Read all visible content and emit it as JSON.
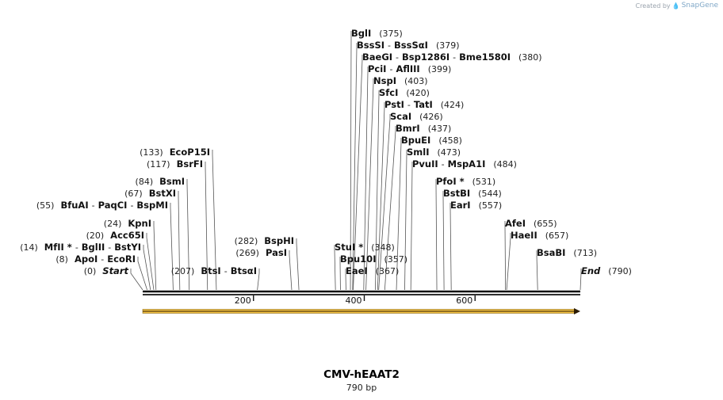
{
  "credit": {
    "prefix": "Created by",
    "brand": "SnapGene"
  },
  "title": "CMV-hEAAT2",
  "subtitle": "790 bp",
  "map": {
    "length": 790,
    "ticks": [
      200,
      400,
      600
    ],
    "feature": {
      "start": 1,
      "end": 790,
      "direction": "forward",
      "color": "#f5c242"
    },
    "sites": [
      {
        "pos": 375,
        "pos_label": "(375)",
        "names": [
          "BglI"
        ]
      },
      {
        "pos": 379,
        "pos_label": "(379)",
        "names": [
          "BssSI",
          "BssSαI"
        ]
      },
      {
        "pos": 380,
        "pos_label": "(380)",
        "names": [
          "BaeGI",
          "Bsp1286I",
          "Bme1580I"
        ]
      },
      {
        "pos": 399,
        "pos_label": "(399)",
        "names": [
          "PciI",
          "AflIII"
        ]
      },
      {
        "pos": 403,
        "pos_label": "(403)",
        "names": [
          "NspI"
        ]
      },
      {
        "pos": 420,
        "pos_label": "(420)",
        "names": [
          "SfcI"
        ]
      },
      {
        "pos": 424,
        "pos_label": "(424)",
        "names": [
          "PstI",
          "TatI"
        ]
      },
      {
        "pos": 426,
        "pos_label": "(426)",
        "names": [
          "ScaI"
        ]
      },
      {
        "pos": 437,
        "pos_label": "(437)",
        "names": [
          "BmrI"
        ]
      },
      {
        "pos": 458,
        "pos_label": "(458)",
        "names": [
          "BpuEI"
        ]
      },
      {
        "pos": 473,
        "pos_label": "(473)",
        "names": [
          "SmlI"
        ]
      },
      {
        "pos": 484,
        "pos_label": "(484)",
        "names": [
          "PvuII",
          "MspA1I"
        ]
      },
      {
        "pos": 531,
        "pos_label": "(531)",
        "names": [
          "PfoI *"
        ]
      },
      {
        "pos": 544,
        "pos_label": "(544)",
        "names": [
          "BstBI"
        ]
      },
      {
        "pos": 557,
        "pos_label": "(557)",
        "names": [
          "EarI"
        ]
      },
      {
        "pos": 655,
        "pos_label": "(655)",
        "names": [
          "AfeI"
        ]
      },
      {
        "pos": 657,
        "pos_label": "(657)",
        "names": [
          "HaeII"
        ]
      },
      {
        "pos": 713,
        "pos_label": "(713)",
        "names": [
          "BsaBI"
        ]
      },
      {
        "pos": 790,
        "pos_label": "(790)",
        "names": [
          "End"
        ],
        "italic": true
      },
      {
        "pos": 348,
        "pos_label": "(348)",
        "names": [
          "StuI *"
        ]
      },
      {
        "pos": 357,
        "pos_label": "(357)",
        "names": [
          "Bpu10I"
        ]
      },
      {
        "pos": 367,
        "pos_label": "(367)",
        "names": [
          "EaeI"
        ]
      },
      {
        "pos": 282,
        "pos_label": "(282)",
        "names": [
          "BspHI"
        ]
      },
      {
        "pos": 269,
        "pos_label": "(269)",
        "names": [
          "PasI"
        ]
      },
      {
        "pos": 207,
        "pos_label": "(207)",
        "names": [
          "BtsI",
          "BtsαI"
        ]
      },
      {
        "pos": 133,
        "pos_label": "(133)",
        "names": [
          "EcoP15I"
        ]
      },
      {
        "pos": 117,
        "pos_label": "(117)",
        "names": [
          "BsrFI"
        ]
      },
      {
        "pos": 84,
        "pos_label": "(84)",
        "names": [
          "BsmI"
        ]
      },
      {
        "pos": 67,
        "pos_label": "(67)",
        "names": [
          "BstXI"
        ]
      },
      {
        "pos": 55,
        "pos_label": "(55)",
        "names": [
          "BfuAI",
          "PaqCI",
          "BspMI"
        ]
      },
      {
        "pos": 24,
        "pos_label": "(24)",
        "names": [
          "KpnI"
        ]
      },
      {
        "pos": 20,
        "pos_label": "(20)",
        "names": [
          "Acc65I"
        ]
      },
      {
        "pos": 14,
        "pos_label": "(14)",
        "names": [
          "MfII *",
          "BglII",
          "BstYI"
        ]
      },
      {
        "pos": 8,
        "pos_label": "(8)",
        "names": [
          "ApoI",
          "EcoRI"
        ]
      },
      {
        "pos": 0,
        "pos_label": "(0)",
        "names": [
          "Start"
        ],
        "italic": true
      }
    ]
  }
}
